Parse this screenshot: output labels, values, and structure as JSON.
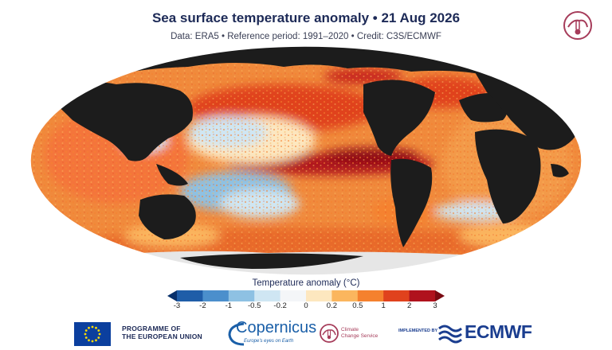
{
  "header": {
    "title": "Sea surface temperature anomaly • 21 Aug 2026",
    "subtitle": "Data: ERA5 • Reference period: 1991–2020 • Credit: C3S/ECMWF"
  },
  "legend": {
    "title": "Temperature anomaly (°C)",
    "ticks": [
      "-3",
      "-2",
      "-1",
      "-0.5",
      "-0.2",
      "0",
      "0.2",
      "0.5",
      "1",
      "2",
      "3"
    ],
    "colors": [
      "#08306b",
      "#1f5da8",
      "#4b8fcc",
      "#8ec1e3",
      "#cfe6f3",
      "#f4f6f8",
      "#fde7bf",
      "#fbb65e",
      "#f5812e",
      "#e0421d",
      "#b0121d",
      "#7a0a12"
    ]
  },
  "colors": {
    "land": "#1c1c1c",
    "ice": "#e6e6e6",
    "title": "#1d2a57",
    "ecmwf": "#1a3d8f"
  },
  "footer": {
    "eu_line1": "PROGRAMME OF",
    "eu_line2": "THE EUROPEAN UNION",
    "copernicus": "Copernicus",
    "copernicus_tagline": "Europe's eyes on Earth",
    "c3s_line1": "Climate",
    "c3s_line2": "Change Service",
    "implemented_by": "IMPLEMENTED BY",
    "ecmwf": "ECMWF"
  }
}
